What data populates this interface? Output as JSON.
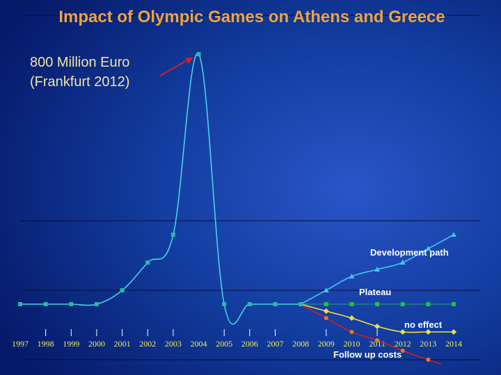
{
  "chart_data": {
    "type": "line",
    "title": "Impact of Olympic Games on Athens and Greece",
    "annotation": {
      "lines": [
        "800 Million Euro",
        "(Frankfurt 2012)"
      ],
      "points_to_year": 2004
    },
    "xlabel": "",
    "ylabel": "",
    "categories": [
      1997,
      1998,
      1999,
      2000,
      2001,
      2002,
      2003,
      2004,
      2005,
      2006,
      2007,
      2008,
      2009,
      2010,
      2011,
      2012,
      2013,
      2014
    ],
    "ylim": [
      -5.5,
      20
    ],
    "y_axis_shown": false,
    "gridlines": [
      6,
      1,
      -4
    ],
    "tick_marks_years": [
      1998,
      1999,
      2000,
      2001,
      2002,
      2003,
      2005,
      2006,
      2007,
      2009,
      2011
    ],
    "series": [
      {
        "key": "olympic",
        "color": "#45d3e6",
        "marker": "square",
        "marker_color": "#2ab8a8",
        "x": [
          1997,
          1998,
          1999,
          2000,
          2001,
          2002,
          2003,
          2004,
          2005,
          2006,
          2007,
          2008
        ],
        "y": [
          0,
          0,
          0,
          0,
          1,
          3,
          5,
          18,
          0,
          0,
          0,
          0
        ]
      },
      {
        "key": "development",
        "name": "Development path",
        "color": "#45c3ef",
        "marker": "triangle",
        "marker_color": "#45c3ef",
        "x": [
          2008,
          2009,
          2010,
          2011,
          2012,
          2013,
          2014
        ],
        "y": [
          0,
          1,
          2,
          2.5,
          3,
          4,
          5
        ]
      },
      {
        "key": "plateau",
        "name": "Plateau",
        "color": "#2a9a8a",
        "marker": "square",
        "marker_color": "#22c040",
        "x": [
          2008,
          2009,
          2010,
          2011,
          2012,
          2013,
          2014
        ],
        "y": [
          0,
          0,
          0,
          0,
          0,
          0,
          0
        ]
      },
      {
        "key": "noeffect",
        "name": "no effect",
        "color": "#f0e040",
        "marker": "diamond",
        "marker_color": "#f0e040",
        "x": [
          2008,
          2009,
          2010,
          2011,
          2012,
          2013,
          2014
        ],
        "y": [
          0,
          -0.5,
          -1,
          -1.6,
          -2,
          -2,
          -2
        ]
      },
      {
        "key": "followup",
        "name": "Follow up costs",
        "color": "#d0201a",
        "marker": "circle",
        "marker_color": "#f07820",
        "x": [
          2008,
          2009,
          2010,
          2011,
          2012,
          2013
        ],
        "y": [
          0,
          -1,
          -2,
          -2.6,
          -3.35,
          -4
        ]
      }
    ]
  }
}
